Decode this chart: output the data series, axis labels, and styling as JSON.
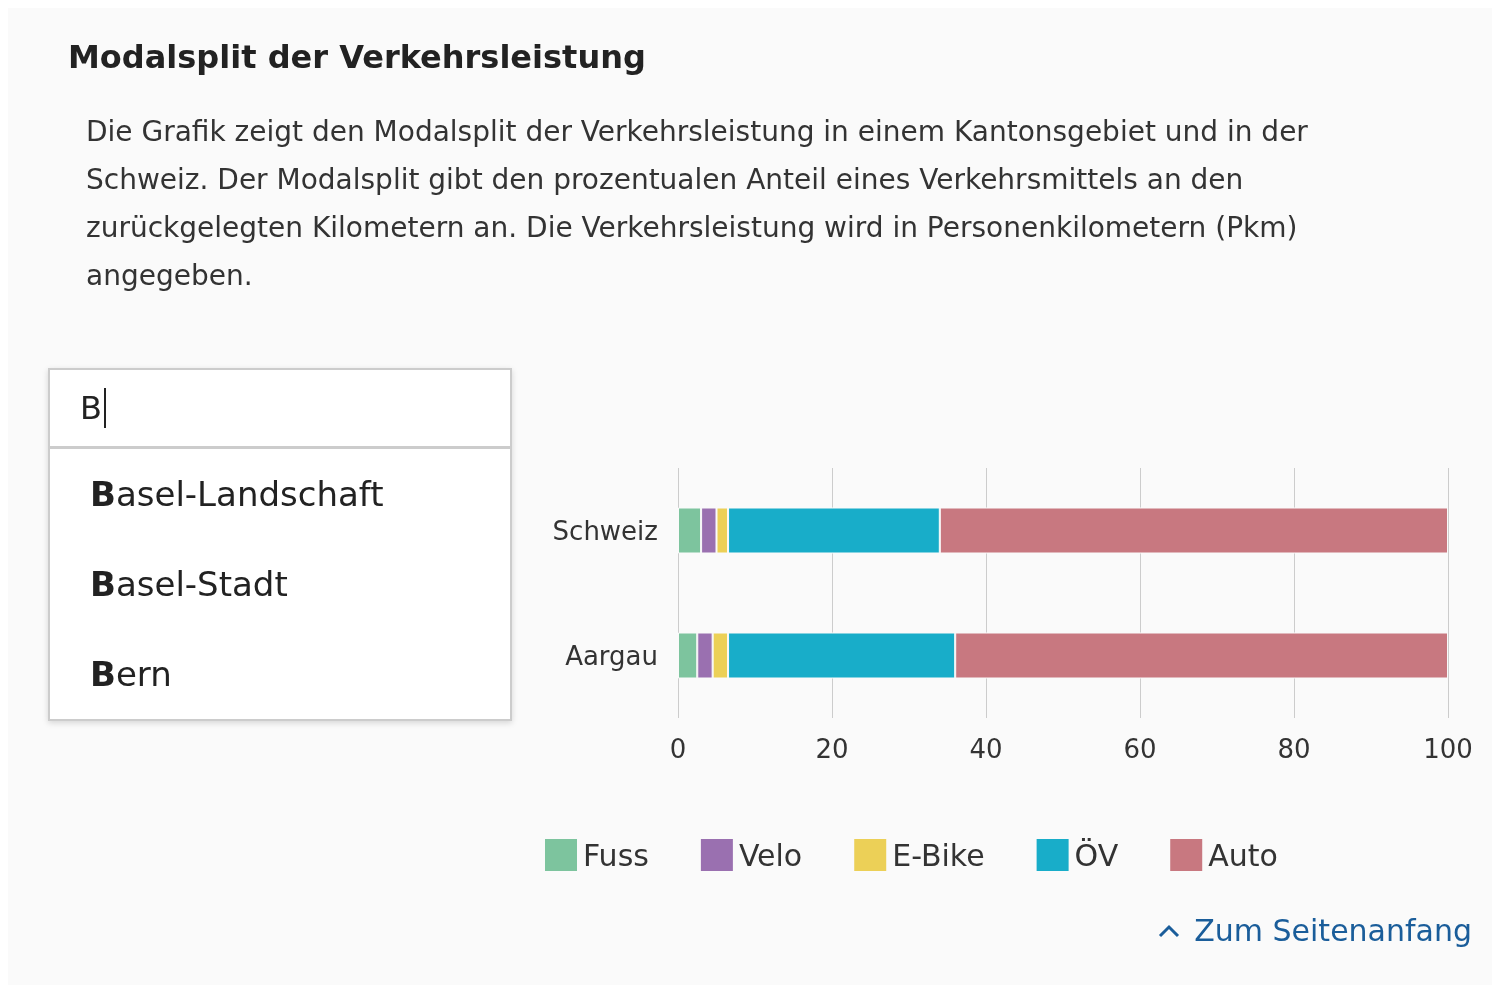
{
  "chart_data": {
    "type": "bar",
    "orientation": "horizontal",
    "stacked": true,
    "title": "Modalsplit der Verkehrsleistung",
    "subtitle": "Die Grafik zeigt den Modalsplit der Verkehrsleistung in einem Kantonsgebiet und in der Schweiz. Der Modalsplit gibt den prozentualen Anteil eines Verkehrsmittels an den zurückgelegten Kilometern an. Die Verkehrsleistung wird in Personenkilometern (Pkm) angegeben.",
    "categories": [
      "Schweiz",
      "Aargau"
    ],
    "series": [
      {
        "name": "Fuss",
        "color": "#7dc49e",
        "values": [
          3,
          2.5
        ]
      },
      {
        "name": "Velo",
        "color": "#9a70b0",
        "values": [
          2,
          2
        ]
      },
      {
        "name": "E-Bike",
        "color": "#ecd057",
        "values": [
          1.5,
          2
        ]
      },
      {
        "name": "ÖV",
        "color": "#18adc9",
        "values": [
          27.5,
          29.5
        ]
      },
      {
        "name": "Auto",
        "color": "#c87880",
        "values": [
          66,
          64
        ]
      }
    ],
    "xlim": [
      0,
      100
    ],
    "xticks": [
      0,
      20,
      40,
      60,
      80,
      100
    ],
    "grid": "x",
    "legend": "bottom left",
    "annotations": [
      "B",
      "Basel-Landschaft",
      "Basel-Stadt",
      "Bern",
      "Zum Seitenanfang"
    ]
  }
}
